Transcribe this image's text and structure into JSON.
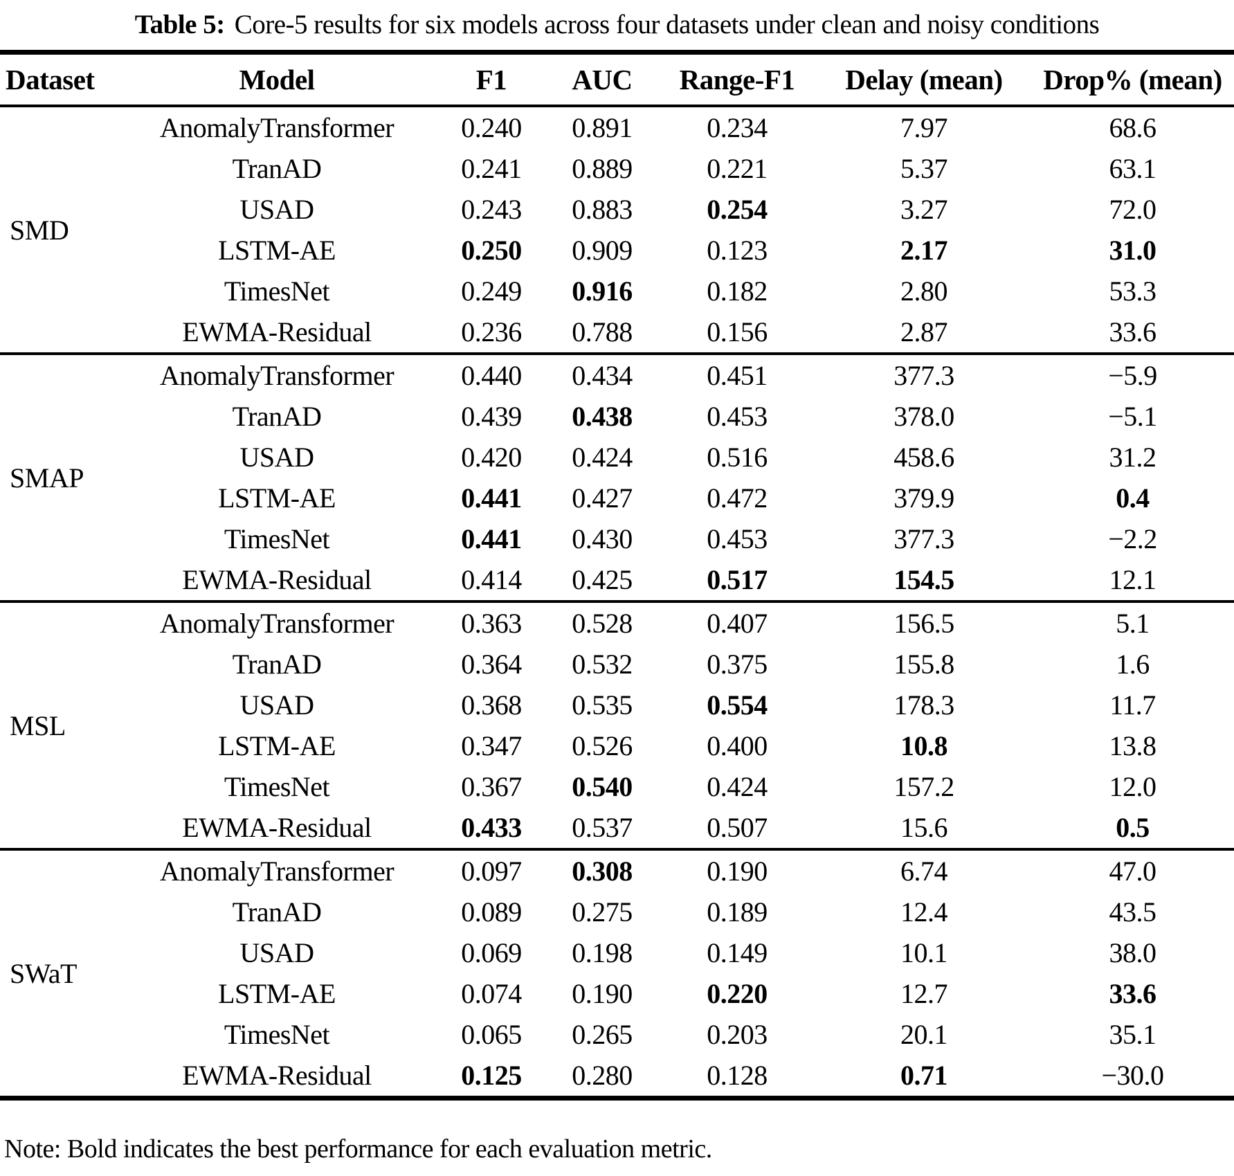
{
  "title": {
    "label": "Table 5:",
    "text": "Core-5 results for six models across four datasets under clean and noisy conditions"
  },
  "columns": [
    "Dataset",
    "Model",
    "F1",
    "AUC",
    "Range-F1",
    "Delay (mean)",
    "Drop% (mean)"
  ],
  "groups": [
    {
      "dataset": "SMD",
      "rows": [
        {
          "model": "AnomalyTransformer",
          "values": [
            "0.240",
            "0.891",
            "0.234",
            "7.97",
            "68.6"
          ],
          "bold": [
            0,
            0,
            0,
            0,
            0
          ]
        },
        {
          "model": "TranAD",
          "values": [
            "0.241",
            "0.889",
            "0.221",
            "5.37",
            "63.1"
          ],
          "bold": [
            0,
            0,
            0,
            0,
            0
          ]
        },
        {
          "model": "USAD",
          "values": [
            "0.243",
            "0.883",
            "0.254",
            "3.27",
            "72.0"
          ],
          "bold": [
            0,
            0,
            1,
            0,
            0
          ]
        },
        {
          "model": "LSTM-AE",
          "values": [
            "0.250",
            "0.909",
            "0.123",
            "2.17",
            "31.0"
          ],
          "bold": [
            1,
            0,
            0,
            1,
            1
          ]
        },
        {
          "model": "TimesNet",
          "values": [
            "0.249",
            "0.916",
            "0.182",
            "2.80",
            "53.3"
          ],
          "bold": [
            0,
            1,
            0,
            0,
            0
          ]
        },
        {
          "model": "EWMA-Residual",
          "values": [
            "0.236",
            "0.788",
            "0.156",
            "2.87",
            "33.6"
          ],
          "bold": [
            0,
            0,
            0,
            0,
            0
          ]
        }
      ]
    },
    {
      "dataset": "SMAP",
      "rows": [
        {
          "model": "AnomalyTransformer",
          "values": [
            "0.440",
            "0.434",
            "0.451",
            "377.3",
            "−5.9"
          ],
          "bold": [
            0,
            0,
            0,
            0,
            0
          ]
        },
        {
          "model": "TranAD",
          "values": [
            "0.439",
            "0.438",
            "0.453",
            "378.0",
            "−5.1"
          ],
          "bold": [
            0,
            1,
            0,
            0,
            0
          ]
        },
        {
          "model": "USAD",
          "values": [
            "0.420",
            "0.424",
            "0.516",
            "458.6",
            "31.2"
          ],
          "bold": [
            0,
            0,
            0,
            0,
            0
          ]
        },
        {
          "model": "LSTM-AE",
          "values": [
            "0.441",
            "0.427",
            "0.472",
            "379.9",
            "0.4"
          ],
          "bold": [
            1,
            0,
            0,
            0,
            1
          ]
        },
        {
          "model": "TimesNet",
          "values": [
            "0.441",
            "0.430",
            "0.453",
            "377.3",
            "−2.2"
          ],
          "bold": [
            1,
            0,
            0,
            0,
            0
          ]
        },
        {
          "model": "EWMA-Residual",
          "values": [
            "0.414",
            "0.425",
            "0.517",
            "154.5",
            "12.1"
          ],
          "bold": [
            0,
            0,
            1,
            1,
            0
          ]
        }
      ]
    },
    {
      "dataset": "MSL",
      "rows": [
        {
          "model": "AnomalyTransformer",
          "values": [
            "0.363",
            "0.528",
            "0.407",
            "156.5",
            "5.1"
          ],
          "bold": [
            0,
            0,
            0,
            0,
            0
          ]
        },
        {
          "model": "TranAD",
          "values": [
            "0.364",
            "0.532",
            "0.375",
            "155.8",
            "1.6"
          ],
          "bold": [
            0,
            0,
            0,
            0,
            0
          ]
        },
        {
          "model": "USAD",
          "values": [
            "0.368",
            "0.535",
            "0.554",
            "178.3",
            "11.7"
          ],
          "bold": [
            0,
            0,
            1,
            0,
            0
          ]
        },
        {
          "model": "LSTM-AE",
          "values": [
            "0.347",
            "0.526",
            "0.400",
            "10.8",
            "13.8"
          ],
          "bold": [
            0,
            0,
            0,
            1,
            0
          ]
        },
        {
          "model": "TimesNet",
          "values": [
            "0.367",
            "0.540",
            "0.424",
            "157.2",
            "12.0"
          ],
          "bold": [
            0,
            1,
            0,
            0,
            0
          ]
        },
        {
          "model": "EWMA-Residual",
          "values": [
            "0.433",
            "0.537",
            "0.507",
            "15.6",
            "0.5"
          ],
          "bold": [
            1,
            0,
            0,
            0,
            1
          ]
        }
      ]
    },
    {
      "dataset": "SWaT",
      "rows": [
        {
          "model": "AnomalyTransformer",
          "values": [
            "0.097",
            "0.308",
            "0.190",
            "6.74",
            "47.0"
          ],
          "bold": [
            0,
            1,
            0,
            0,
            0
          ]
        },
        {
          "model": "TranAD",
          "values": [
            "0.089",
            "0.275",
            "0.189",
            "12.4",
            "43.5"
          ],
          "bold": [
            0,
            0,
            0,
            0,
            0
          ]
        },
        {
          "model": "USAD",
          "values": [
            "0.069",
            "0.198",
            "0.149",
            "10.1",
            "38.0"
          ],
          "bold": [
            0,
            0,
            0,
            0,
            0
          ]
        },
        {
          "model": "LSTM-AE",
          "values": [
            "0.074",
            "0.190",
            "0.220",
            "12.7",
            "33.6"
          ],
          "bold": [
            0,
            0,
            1,
            0,
            1
          ]
        },
        {
          "model": "TimesNet",
          "values": [
            "0.065",
            "0.265",
            "0.203",
            "20.1",
            "35.1"
          ],
          "bold": [
            0,
            0,
            0,
            0,
            0
          ]
        },
        {
          "model": "EWMA-Residual",
          "values": [
            "0.125",
            "0.280",
            "0.128",
            "0.71",
            "−30.0"
          ],
          "bold": [
            1,
            0,
            0,
            1,
            0
          ]
        }
      ]
    }
  ],
  "note": "Note: Bold indicates the best performance for each evaluation metric."
}
